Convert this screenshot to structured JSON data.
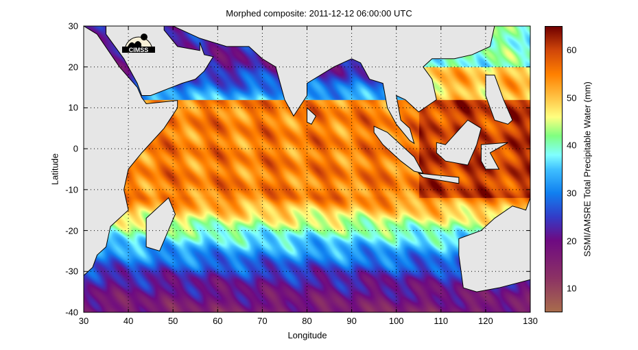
{
  "title": "Morphed composite: 2011-12-12 06:00:00 UTC",
  "logo_text": "CIMSS",
  "chart_data": {
    "type": "heatmap",
    "title": "Morphed composite: 2011-12-12 06:00:00 UTC",
    "xlabel": "Longitude",
    "ylabel": "Latitude",
    "colorbar_label": "SSMI/AMSRE Total Precipitable Water (mm)",
    "xlim": [
      30,
      130
    ],
    "ylim": [
      -40,
      30
    ],
    "xticks": [
      "30",
      "40",
      "50",
      "60",
      "70",
      "80",
      "90",
      "100",
      "110",
      "120",
      "130"
    ],
    "yticks": [
      "30",
      "20",
      "10",
      "0",
      "-10",
      "-20",
      "-30",
      "-40"
    ],
    "colorbar_range": [
      5,
      65
    ],
    "colorbar_ticks": [
      "60",
      "50",
      "40",
      "30",
      "20",
      "10"
    ],
    "grid": true,
    "land_color": "#e6e6e6"
  }
}
